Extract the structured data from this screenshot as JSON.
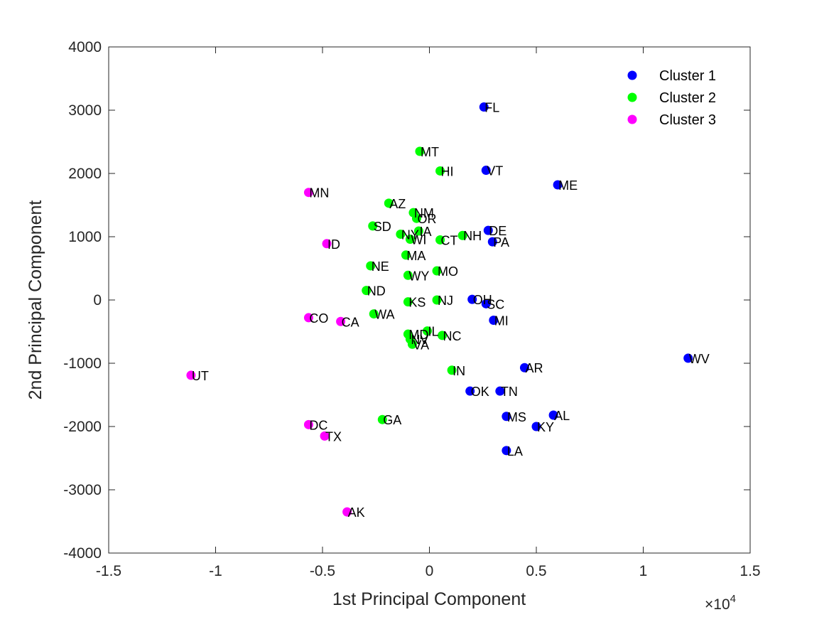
{
  "chart_data": {
    "type": "scatter",
    "xlabel": "1st Principal Component",
    "ylabel": "2nd Principal Component",
    "x_multiplier_label": "×10",
    "x_multiplier_exp": "4",
    "xlim": [
      -15000,
      15000
    ],
    "ylim": [
      -4000,
      4000
    ],
    "x_ticks": [
      -15000,
      -10000,
      -5000,
      0,
      5000,
      10000,
      15000
    ],
    "x_tick_labels": [
      "-1.5",
      "-1",
      "-0.5",
      "0",
      "0.5",
      "1",
      "1.5"
    ],
    "y_ticks": [
      -4000,
      -3000,
      -2000,
      -1000,
      0,
      1000,
      2000,
      3000,
      4000
    ],
    "y_tick_labels": [
      "-4000",
      "-3000",
      "-2000",
      "-1000",
      "0",
      "1000",
      "2000",
      "3000",
      "4000"
    ],
    "grid": false,
    "legend_position": "top-right",
    "series": [
      {
        "name": "Cluster 1",
        "color": "#0000ff",
        "points": [
          {
            "label": "FL",
            "x": 2550,
            "y": 3050
          },
          {
            "label": "VT",
            "x": 2650,
            "y": 2050
          },
          {
            "label": "ME",
            "x": 6000,
            "y": 1820
          },
          {
            "label": "DE",
            "x": 2750,
            "y": 1100
          },
          {
            "label": "PA",
            "x": 2950,
            "y": 920
          },
          {
            "label": "OH",
            "x": 2000,
            "y": 10
          },
          {
            "label": "SC",
            "x": 2650,
            "y": -60
          },
          {
            "label": "MI",
            "x": 3000,
            "y": -320
          },
          {
            "label": "WV",
            "x": 12100,
            "y": -920
          },
          {
            "label": "AR",
            "x": 4450,
            "y": -1070
          },
          {
            "label": "OK",
            "x": 1900,
            "y": -1440
          },
          {
            "label": "TN",
            "x": 3300,
            "y": -1440
          },
          {
            "label": "MS",
            "x": 3600,
            "y": -1840
          },
          {
            "label": "AL",
            "x": 5800,
            "y": -1820
          },
          {
            "label": "KY",
            "x": 5000,
            "y": -2000
          },
          {
            "label": "LA",
            "x": 3600,
            "y": -2380
          }
        ]
      },
      {
        "name": "Cluster 2",
        "color": "#00ff00",
        "points": [
          {
            "label": "MT",
            "x": -450,
            "y": 2350
          },
          {
            "label": "HI",
            "x": 500,
            "y": 2040
          },
          {
            "label": "AZ",
            "x": -1900,
            "y": 1530
          },
          {
            "label": "NM",
            "x": -750,
            "y": 1380
          },
          {
            "label": "OR",
            "x": -600,
            "y": 1290
          },
          {
            "label": "SD",
            "x": -2650,
            "y": 1170
          },
          {
            "label": "NY",
            "x": -1350,
            "y": 1040
          },
          {
            "label": "IA",
            "x": -500,
            "y": 1090
          },
          {
            "label": "WI",
            "x": -900,
            "y": 960
          },
          {
            "label": "CT",
            "x": 500,
            "y": 950
          },
          {
            "label": "NH",
            "x": 1550,
            "y": 1020
          },
          {
            "label": "MA",
            "x": -1100,
            "y": 710
          },
          {
            "label": "NE",
            "x": -2750,
            "y": 540
          },
          {
            "label": "MO",
            "x": 350,
            "y": 460
          },
          {
            "label": "WY",
            "x": -1000,
            "y": 390
          },
          {
            "label": "ND",
            "x": -2950,
            "y": 150
          },
          {
            "label": "KS",
            "x": -1000,
            "y": -30
          },
          {
            "label": "NJ",
            "x": 350,
            "y": 0
          },
          {
            "label": "WA",
            "x": -2600,
            "y": -220
          },
          {
            "label": "MD",
            "x": -1000,
            "y": -540
          },
          {
            "label": "IL",
            "x": -100,
            "y": -490
          },
          {
            "label": "NC",
            "x": 600,
            "y": -560
          },
          {
            "label": "NV",
            "x": -900,
            "y": -620
          },
          {
            "label": "VA",
            "x": -800,
            "y": -700
          },
          {
            "label": "IN",
            "x": 1050,
            "y": -1110
          },
          {
            "label": "GA",
            "x": -2200,
            "y": -1890
          }
        ]
      },
      {
        "name": "Cluster 3",
        "color": "#ff00ff",
        "points": [
          {
            "label": "MN",
            "x": -5650,
            "y": 1700
          },
          {
            "label": "ID",
            "x": -4800,
            "y": 890
          },
          {
            "label": "CO",
            "x": -5650,
            "y": -280
          },
          {
            "label": "CA",
            "x": -4150,
            "y": -340
          },
          {
            "label": "UT",
            "x": -11150,
            "y": -1190
          },
          {
            "label": "DC",
            "x": -5650,
            "y": -1970
          },
          {
            "label": "TX",
            "x": -4900,
            "y": -2150
          },
          {
            "label": "AK",
            "x": -3850,
            "y": -3350
          }
        ]
      }
    ]
  }
}
